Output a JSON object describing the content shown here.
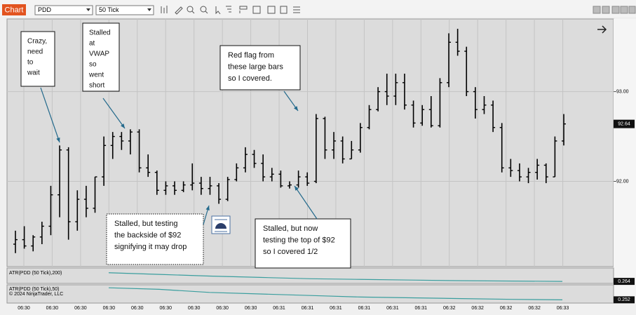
{
  "toolbar": {
    "button": "Chart",
    "instrument": "PDD",
    "period": "50 Tick"
  },
  "chart_data": {
    "type": "ohlc",
    "open": [
      91.3,
      91.35,
      91.28,
      91.38,
      91.5,
      91.85,
      92.35,
      91.55,
      91.8,
      91.7,
      92.05,
      92.4,
      92.5,
      92.45,
      92.55,
      92.15,
      92.1,
      91.9,
      91.95,
      91.9,
      91.96,
      91.98,
      91.92,
      91.95,
      91.8,
      92.02,
      92.15,
      92.3,
      92.2,
      92.05,
      92.08,
      91.95,
      91.96,
      92.05,
      92.0,
      92.7,
      92.35,
      92.45,
      92.25,
      92.35,
      92.6,
      92.8,
      93.0,
      92.95,
      93.1,
      92.85,
      92.65,
      92.8,
      92.62,
      93.1,
      93.55,
      93.45,
      93.0,
      92.8,
      92.85,
      92.6,
      92.15,
      92.12,
      92.05,
      92.1,
      92.18,
      92.05,
      92.45
    ],
    "high": [
      91.45,
      91.5,
      91.4,
      91.55,
      91.95,
      92.4,
      92.38,
      91.9,
      91.95,
      92.05,
      92.5,
      92.55,
      92.55,
      92.58,
      92.58,
      92.3,
      92.12,
      92.0,
      92.0,
      92.0,
      92.2,
      92.05,
      92.05,
      91.98,
      92.05,
      92.2,
      92.38,
      92.35,
      92.3,
      92.15,
      92.12,
      92.0,
      92.12,
      92.1,
      92.75,
      92.72,
      92.55,
      92.5,
      92.45,
      92.65,
      92.85,
      93.05,
      93.2,
      93.2,
      93.2,
      92.9,
      92.85,
      92.95,
      93.15,
      93.65,
      93.7,
      93.5,
      93.05,
      92.95,
      92.9,
      92.65,
      92.25,
      92.2,
      92.15,
      92.25,
      92.2,
      92.5,
      92.75
    ],
    "low": [
      91.2,
      91.25,
      91.22,
      91.3,
      91.4,
      91.6,
      91.35,
      91.45,
      91.6,
      91.65,
      91.95,
      92.25,
      92.35,
      92.3,
      92.1,
      92.05,
      91.85,
      91.85,
      91.85,
      91.88,
      91.9,
      91.85,
      91.85,
      91.75,
      91.78,
      92.0,
      92.1,
      92.15,
      92.0,
      92.0,
      91.93,
      91.92,
      91.93,
      91.95,
      91.98,
      92.25,
      92.25,
      92.2,
      92.25,
      92.32,
      92.58,
      92.78,
      92.85,
      92.85,
      92.8,
      92.6,
      92.62,
      92.6,
      92.6,
      93.05,
      93.4,
      92.95,
      92.7,
      92.75,
      92.55,
      92.1,
      92.05,
      92.0,
      91.98,
      92.02,
      91.98,
      92.05,
      92.4
    ],
    "close": [
      91.35,
      91.28,
      91.38,
      91.5,
      91.85,
      92.35,
      91.55,
      91.8,
      91.7,
      92.05,
      92.4,
      92.5,
      92.45,
      92.55,
      92.15,
      92.1,
      91.9,
      91.95,
      91.9,
      91.96,
      91.98,
      91.92,
      91.95,
      91.8,
      92.02,
      92.15,
      92.3,
      92.2,
      92.05,
      92.08,
      91.95,
      91.96,
      92.05,
      91.98,
      92.7,
      92.35,
      92.45,
      92.25,
      92.35,
      92.6,
      92.8,
      93.0,
      92.95,
      93.1,
      92.85,
      92.65,
      92.8,
      92.62,
      93.1,
      93.55,
      93.45,
      93.0,
      92.8,
      92.85,
      92.6,
      92.15,
      92.12,
      92.05,
      92.1,
      92.18,
      92.05,
      92.45,
      92.64
    ],
    "ylim": [
      91.05,
      93.81
    ],
    "yticks": [
      {
        "value": 92,
        "label": "92.00"
      },
      {
        "value": 93,
        "label": "93.00"
      }
    ],
    "x_labels": [
      "06:30",
      "06:30",
      "06:30",
      "06:30",
      "06:30",
      "06:30",
      "06:30",
      "06:30",
      "06:30",
      "06:31",
      "06:31",
      "06:31",
      "06:31",
      "06:31",
      "06:31",
      "06:32",
      "06:32",
      "06:32",
      "06:32",
      "06:33"
    ],
    "grid": true,
    "annotations": [
      {
        "lines": [
          "Crazy,",
          "need",
          "to",
          "wait"
        ]
      },
      {
        "lines": [
          "Stalled",
          "at",
          "VWAP",
          "so",
          "went",
          "short"
        ]
      },
      {
        "lines": [
          "Red flag from",
          "these large bars",
          "so I covered."
        ]
      },
      {
        "lines": [
          "Stalled, but testing",
          "the backside of $92",
          "signifying it may drop"
        ]
      },
      {
        "lines": [
          "Stalled, but now",
          "testing the top of $92",
          "so I covered 1/2"
        ]
      }
    ],
    "indicators": [
      {
        "name": "ATR(PDD (50 Tick),200)",
        "color": "#3a9e9e",
        "ylim": [
          0.26,
          0.3
        ],
        "values": [
          0.29,
          0.285,
          0.28,
          0.276,
          0.272,
          0.27,
          0.268,
          0.266,
          0.265,
          0.264
        ]
      },
      {
        "name": "ATR(PDD (50 Tick),50)",
        "color": "#3a9e9e",
        "ylim": [
          0.24,
          0.34
        ],
        "values": [
          0.33,
          0.32,
          0.3,
          0.29,
          0.28,
          0.27,
          0.265,
          0.26,
          0.255,
          0.252
        ]
      }
    ],
    "copyright": "© 2024 NinjaTrader, LLC"
  }
}
